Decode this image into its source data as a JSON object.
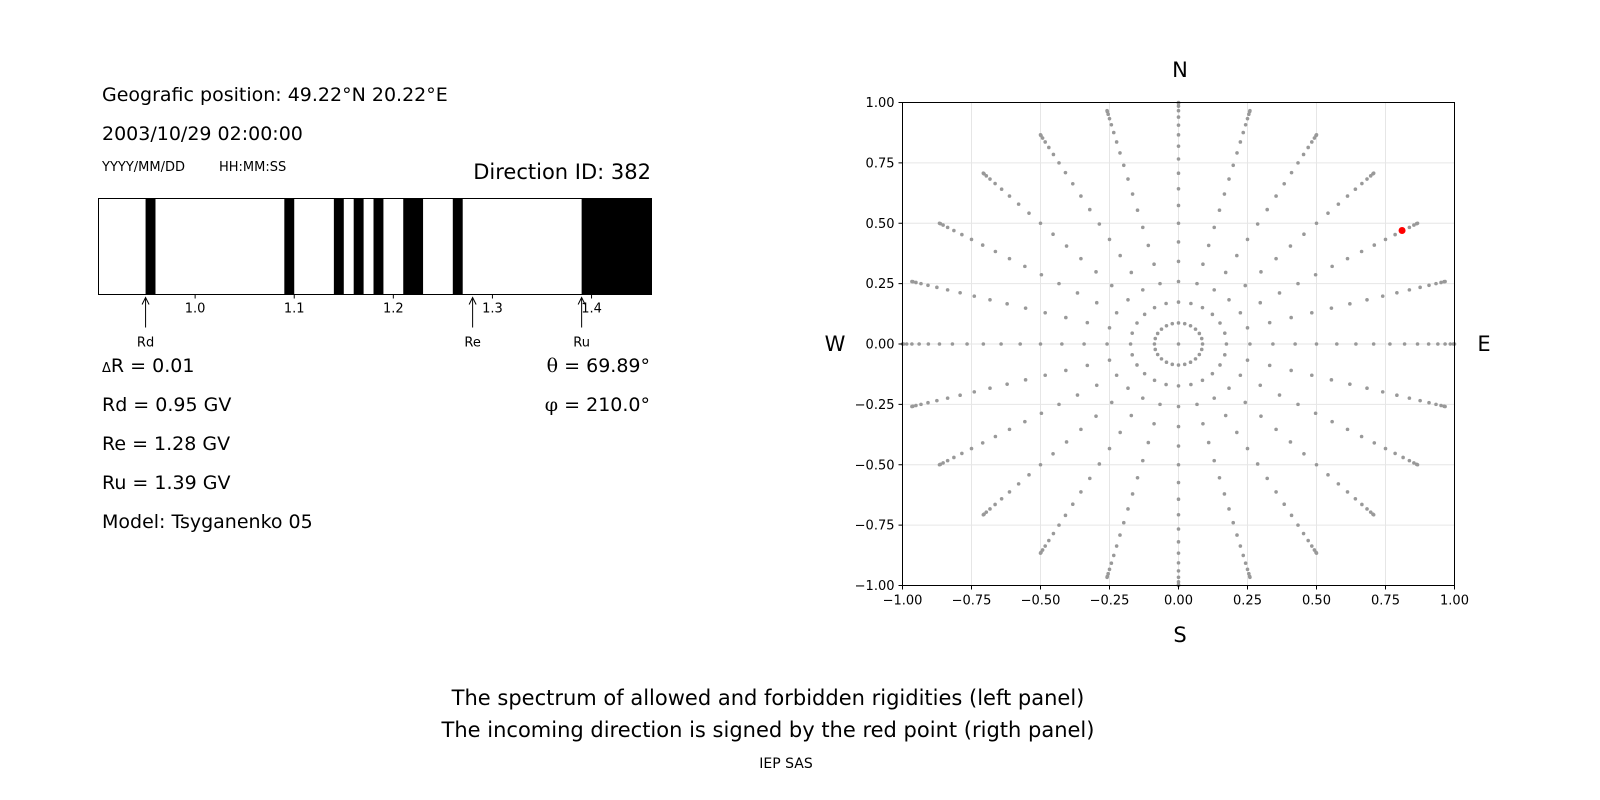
{
  "header": {
    "position": "Geografic position: 49.22°N 20.22°E",
    "datetime": "2003/10/29 02:00:00",
    "date_format": "YYYY/MM/DD",
    "time_format": "HH:MM:SS",
    "direction_id": "Direction ID: 382"
  },
  "params": {
    "delta_r_symbol": "Δ",
    "delta_r": "R = 0.01",
    "rd": "Rd = 0.95 GV",
    "re": "Re = 1.28 GV",
    "ru": "Ru = 1.39 GV",
    "model": "Model: Tsyganenko 05",
    "theta_symbol": "θ",
    "theta": "= 69.89°",
    "phi_symbol": "φ",
    "phi": "= 210.0°"
  },
  "compass": {
    "n": "N",
    "s": "S",
    "w": "W",
    "e": "E"
  },
  "footer": {
    "caption_line1": "The spectrum of allowed and forbidden rigidities (left panel)",
    "caption_line2": "The incoming direction is signed by the red point (rigth panel)",
    "credit": "IEP SAS"
  },
  "colors": {
    "grid_point": "#999999",
    "highlight": "#ff0000",
    "forbidden": "#000000"
  },
  "chart_data": [
    {
      "type": "bar",
      "description_kind": "rigidity spectrum",
      "xlim": [
        0.9025,
        1.4605
      ],
      "ticks": [
        "1.0",
        "1.1",
        "1.2",
        "1.3",
        "1.4"
      ],
      "tick_values": [
        1.0,
        1.1,
        1.2,
        1.3,
        1.4
      ],
      "forbidden_bands": [
        [
          0.95,
          0.96
        ],
        [
          1.09,
          1.1
        ],
        [
          1.14,
          1.15
        ],
        [
          1.16,
          1.17
        ],
        [
          1.18,
          1.19
        ],
        [
          1.21,
          1.23
        ],
        [
          1.26,
          1.27
        ],
        [
          1.39,
          1.4605
        ]
      ],
      "markers": [
        {
          "label": "Rd",
          "value": 0.95
        },
        {
          "label": "Re",
          "value": 1.28
        },
        {
          "label": "Ru",
          "value": 1.39
        }
      ]
    },
    {
      "type": "scatter",
      "xlim": [
        -1.0,
        1.0
      ],
      "ylim": [
        -1.0,
        1.0
      ],
      "xticks": [
        "−1.00",
        "−0.75",
        "−0.50",
        "−0.25",
        "0.00",
        "0.25",
        "0.50",
        "0.75",
        "1.00"
      ],
      "yticks": [
        "1.00",
        "0.75",
        "0.50",
        "0.25",
        "0.00",
        "−0.25",
        "−0.50",
        "−0.75",
        "−1.00"
      ],
      "tick_values": [
        -1.0,
        -0.75,
        -0.5,
        -0.25,
        0.0,
        0.25,
        0.5,
        0.75,
        1.0
      ],
      "grid": true,
      "radial_directions": 24,
      "azimuth_step_deg": 15,
      "highlight": {
        "x": 0.81,
        "y": 0.47
      }
    }
  ]
}
